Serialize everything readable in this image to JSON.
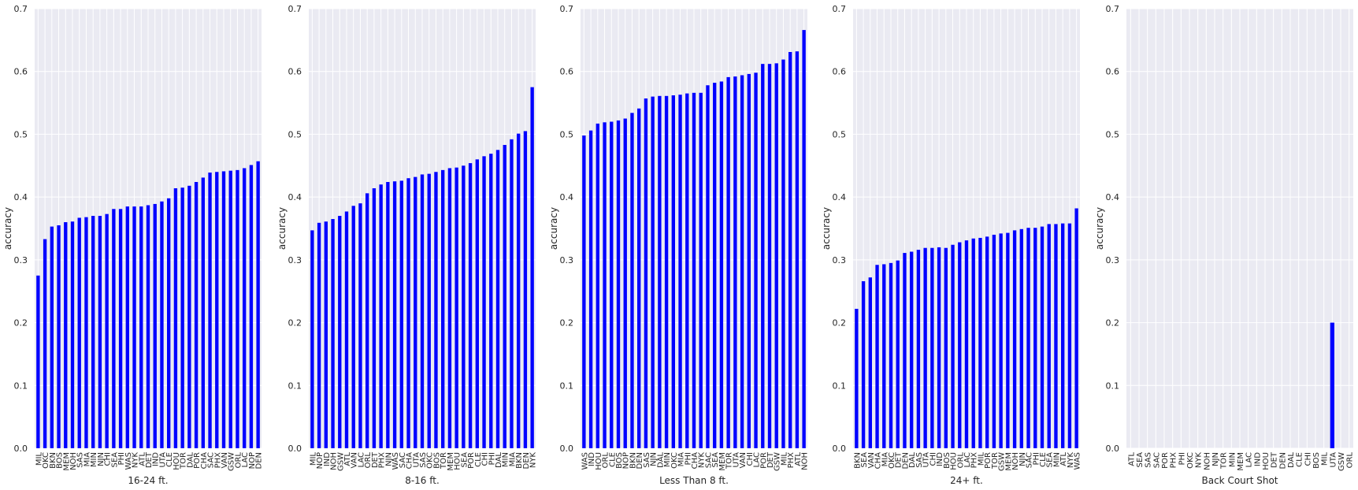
{
  "style": {
    "bar_color": "#0000ff",
    "plot_background": "#eaeaf2",
    "grid_color": "#ffffff"
  },
  "chart_data": [
    {
      "type": "bar",
      "xlabel": "16-24 ft.",
      "ylabel": "accuracy",
      "ylim": [
        0,
        0.7
      ],
      "yticks": [
        "0.0",
        "0.1",
        "0.2",
        "0.3",
        "0.4",
        "0.5",
        "0.6",
        "0.7"
      ],
      "grid": true,
      "categories": [
        "MIL",
        "OKC",
        "BKN",
        "BOS",
        "MEM",
        "NOH",
        "SAS",
        "MIA",
        "MIN",
        "NJN",
        "CHI",
        "SEA",
        "PHI",
        "WAS",
        "NYK",
        "ATL",
        "DET",
        "IND",
        "UTA",
        "CLE",
        "HOU",
        "TOR",
        "DAL",
        "POR",
        "CHA",
        "SAC",
        "PHX",
        "VAN",
        "GSW",
        "ORL",
        "LAC",
        "NOP",
        "DEN"
      ],
      "values": [
        0.275,
        0.333,
        0.353,
        0.355,
        0.36,
        0.361,
        0.367,
        0.368,
        0.37,
        0.37,
        0.373,
        0.381,
        0.381,
        0.385,
        0.385,
        0.385,
        0.387,
        0.389,
        0.393,
        0.398,
        0.414,
        0.415,
        0.418,
        0.424,
        0.431,
        0.439,
        0.44,
        0.441,
        0.442,
        0.443,
        0.446,
        0.451,
        0.457
      ]
    },
    {
      "type": "bar",
      "xlabel": "8-16 ft.",
      "ylabel": "accuracy",
      "ylim": [
        0,
        0.7
      ],
      "yticks": [
        "0.0",
        "0.1",
        "0.2",
        "0.3",
        "0.4",
        "0.5",
        "0.6",
        "0.7"
      ],
      "grid": true,
      "categories": [
        "MIL",
        "NOP",
        "IND",
        "NOH",
        "GSW",
        "ATL",
        "VAN",
        "LAC",
        "ORL",
        "DET",
        "PHX",
        "NJN",
        "WAS",
        "SAC",
        "CHA",
        "UTA",
        "SAS",
        "OKC",
        "BOS",
        "TOR",
        "MEM",
        "HOU",
        "SEA",
        "POR",
        "CLE",
        "CHI",
        "PHI",
        "DAL",
        "MIN",
        "MIA",
        "BKN",
        "DEN",
        "NYK"
      ],
      "values": [
        0.347,
        0.359,
        0.361,
        0.365,
        0.37,
        0.377,
        0.386,
        0.39,
        0.406,
        0.414,
        0.42,
        0.424,
        0.425,
        0.426,
        0.43,
        0.432,
        0.436,
        0.437,
        0.44,
        0.443,
        0.446,
        0.447,
        0.45,
        0.454,
        0.46,
        0.465,
        0.469,
        0.475,
        0.483,
        0.492,
        0.501,
        0.505,
        0.575
      ]
    },
    {
      "type": "bar",
      "xlabel": "Less Than 8 ft.",
      "ylabel": "accuracy",
      "ylim": [
        0,
        0.7
      ],
      "yticks": [
        "0.0",
        "0.1",
        "0.2",
        "0.3",
        "0.4",
        "0.5",
        "0.6",
        "0.7"
      ],
      "grid": true,
      "categories": [
        "WAS",
        "IND",
        "HOU",
        "ORL",
        "CLE",
        "BOS",
        "NOP",
        "BKN",
        "DEN",
        "SAS",
        "NJN",
        "DAL",
        "MIN",
        "OKC",
        "MIA",
        "PHI",
        "CHA",
        "NYK",
        "SAC",
        "SEA",
        "MEM",
        "TOR",
        "UTA",
        "VAN",
        "CHI",
        "LAC",
        "POR",
        "DET",
        "GSW",
        "MIL",
        "PHX",
        "ATL",
        "NOH"
      ],
      "values": [
        0.498,
        0.506,
        0.517,
        0.519,
        0.52,
        0.522,
        0.525,
        0.534,
        0.541,
        0.557,
        0.56,
        0.561,
        0.561,
        0.562,
        0.563,
        0.565,
        0.566,
        0.566,
        0.578,
        0.582,
        0.584,
        0.591,
        0.592,
        0.594,
        0.596,
        0.598,
        0.612,
        0.612,
        0.613,
        0.619,
        0.631,
        0.632,
        0.666
      ]
    },
    {
      "type": "bar",
      "xlabel": "24+ ft.",
      "ylabel": "accuracy",
      "ylim": [
        0,
        0.7
      ],
      "yticks": [
        "0.0",
        "0.1",
        "0.2",
        "0.3",
        "0.4",
        "0.5",
        "0.6",
        "0.7"
      ],
      "grid": true,
      "categories": [
        "BKN",
        "SEA",
        "VAN",
        "CHA",
        "MIA",
        "OKC",
        "DET",
        "DEN",
        "DAL",
        "SAS",
        "UTA",
        "CHI",
        "IND",
        "BOS",
        "HOU",
        "ORL",
        "LAC",
        "PHX",
        "MIL",
        "POR",
        "TOR",
        "GSW",
        "MEM",
        "NOH",
        "NJN",
        "SAC",
        "PHI",
        "CLE",
        "SEA",
        "MIN",
        "ATL",
        "NYK",
        "WAS"
      ],
      "values": [
        0.222,
        0.266,
        0.272,
        0.292,
        0.293,
        0.295,
        0.299,
        0.311,
        0.313,
        0.316,
        0.319,
        0.319,
        0.32,
        0.319,
        0.324,
        0.328,
        0.331,
        0.334,
        0.335,
        0.337,
        0.34,
        0.342,
        0.343,
        0.347,
        0.349,
        0.351,
        0.351,
        0.353,
        0.357,
        0.357,
        0.358,
        0.358,
        0.382
      ]
    },
    {
      "type": "bar",
      "xlabel": "Back Court Shot",
      "ylabel": "accuracy",
      "ylim": [
        0,
        0.7
      ],
      "yticks": [
        "0.0",
        "0.1",
        "0.2",
        "0.3",
        "0.4",
        "0.5",
        "0.6",
        "0.7"
      ],
      "grid": true,
      "categories": [
        "ATL",
        "SEA",
        "SAS",
        "SAC",
        "POR",
        "PHX",
        "PHI",
        "OKC",
        "NYK",
        "NOH",
        "NJN",
        "TOR",
        "MIN",
        "MEM",
        "LAC",
        "IND",
        "HOU",
        "DET",
        "DEN",
        "DAL",
        "CLE",
        "CHI",
        "BOS",
        "MIL",
        "UTA",
        "GSW",
        "ORL"
      ],
      "values": [
        0,
        0,
        0,
        0,
        0,
        0,
        0,
        0,
        0,
        0,
        0,
        0,
        0,
        0,
        0,
        0,
        0,
        0,
        0,
        0,
        0,
        0,
        0,
        0,
        0.2,
        0,
        0
      ]
    }
  ]
}
